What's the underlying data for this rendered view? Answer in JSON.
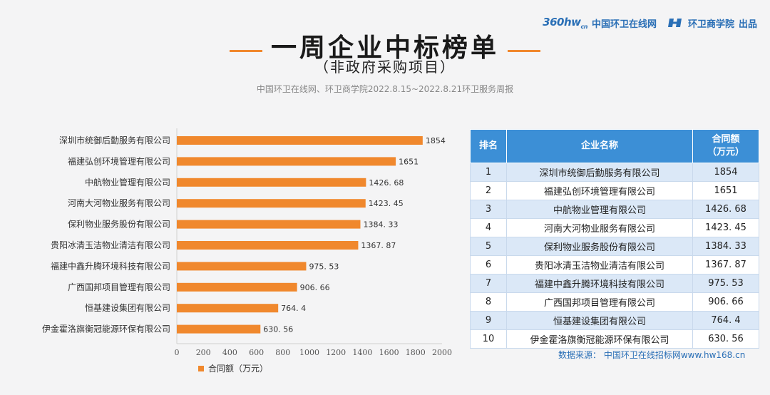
{
  "brand": {
    "logo_text": "360hw",
    "logo_sub": "cn",
    "site_name": "中国环卫在线网",
    "academy": "环卫商学院",
    "produced": "出品"
  },
  "header": {
    "title": "一周企业中标榜单",
    "subtitle": "（非政府采购项目）",
    "source_line": "中国环卫在线网、环卫商学院2022.8.15~2022.8.21环卫服务周报"
  },
  "chart_data": {
    "type": "bar",
    "orientation": "horizontal",
    "categories": [
      "深圳市统御后勤服务有限公司",
      "福建弘创环境管理有限公司",
      "中航物业管理有限公司",
      "河南大河物业服务有限公司",
      "保利物业服务股份有限公司",
      "贵阳冰清玉洁物业清洁有限公司",
      "福建中鑫升腾环境科技有限公司",
      "广西国邦项目管理有限公司",
      "恒基建设集团有限公司",
      "伊金霍洛旗衡冠能源环保有限公司"
    ],
    "values": [
      1854,
      1651,
      1426.68,
      1423.45,
      1384.33,
      1367.87,
      975.53,
      906.66,
      764.4,
      630.56
    ],
    "value_labels": [
      "1854",
      "1651",
      "1426. 68",
      "1423. 45",
      "1384. 33",
      "1367. 87",
      "975. 53",
      "906. 66",
      "764. 4",
      "630. 56"
    ],
    "xlim": [
      0,
      2000
    ],
    "xticks": [
      0,
      200,
      400,
      600,
      800,
      1000,
      1200,
      1400,
      1600,
      1800,
      2000
    ],
    "legend": "合同额（万元）",
    "legend_position": "bottom-left",
    "bar_color": "#f0882d",
    "grid": false
  },
  "table": {
    "headers": {
      "rank": "排名",
      "name": "企业名称",
      "amount_l1": "合同额",
      "amount_l2": "（万元）"
    },
    "rows": [
      {
        "rank": "1",
        "name": "深圳市统御后勤服务有限公司",
        "amount": "1854"
      },
      {
        "rank": "2",
        "name": "福建弘创环境管理有限公司",
        "amount": "1651"
      },
      {
        "rank": "3",
        "name": "中航物业管理有限公司",
        "amount": "1426. 68"
      },
      {
        "rank": "4",
        "name": "河南大河物业服务有限公司",
        "amount": "1423. 45"
      },
      {
        "rank": "5",
        "name": "保利物业服务股份有限公司",
        "amount": "1384. 33"
      },
      {
        "rank": "6",
        "name": "贵阳冰清玉洁物业清洁有限公司",
        "amount": "1367. 87"
      },
      {
        "rank": "7",
        "name": "福建中鑫升腾环境科技有限公司",
        "amount": "975. 53"
      },
      {
        "rank": "8",
        "name": "广西国邦项目管理有限公司",
        "amount": "906. 66"
      },
      {
        "rank": "9",
        "name": "恒基建设集团有限公司",
        "amount": "764. 4"
      },
      {
        "rank": "10",
        "name": "伊金霍洛旗衡冠能源环保有限公司",
        "amount": "630. 56"
      }
    ]
  },
  "footer": {
    "data_source": "数据来源：  中国环卫在线招标网www.hw168.cn"
  },
  "colors": {
    "accent": "#f0882d",
    "header_blue": "#3c8fd6",
    "row_blue": "#dbe8f7",
    "brand_blue": "#2a6fb6"
  }
}
